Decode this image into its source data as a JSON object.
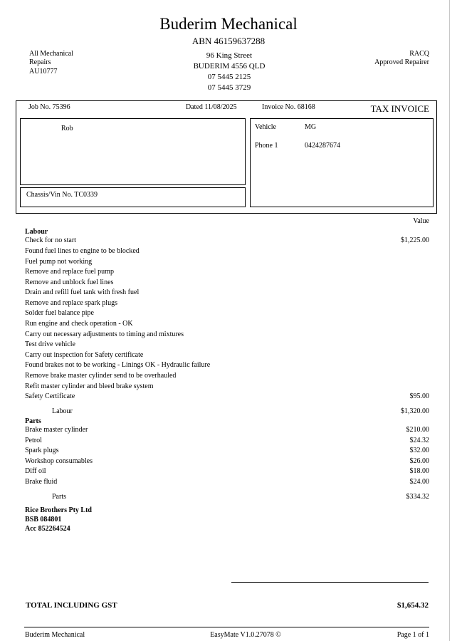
{
  "header": {
    "company": "Buderim Mechanical",
    "abn": "ABN 46159637288",
    "left_lines": [
      "All Mechanical",
      "Repairs",
      "AU10777"
    ],
    "address_lines": [
      "96 King Street",
      "BUDERIM 4556 QLD",
      "07 5445 2125",
      "07 5445 3729"
    ],
    "right_lines": [
      "RACQ",
      "Approved Repairer"
    ]
  },
  "invoice": {
    "job_no": "Job No. 75396",
    "dated": "Dated 11/08/2025",
    "invoice_no": "Invoice No. 68168",
    "doc_type": "TAX INVOICE",
    "customer_name": "Rob",
    "chassis": "Chassis/Vin No. TC0339",
    "vehicle_label": "Vehicle",
    "vehicle_value": "MG",
    "phone_label": "Phone 1",
    "phone_value": "0424287674"
  },
  "value_header": "Value",
  "labour": {
    "heading": "Labour",
    "items": [
      {
        "desc": "Check for no start",
        "value": "$1,225.00"
      },
      {
        "desc": "Found fuel lines to engine to be blocked",
        "value": ""
      },
      {
        "desc": "Fuel pump not working",
        "value": ""
      },
      {
        "desc": "Remove and replace fuel pump",
        "value": ""
      },
      {
        "desc": "Remove and unblock fuel lines",
        "value": ""
      },
      {
        "desc": "Drain and refill fuel tank with fresh fuel",
        "value": ""
      },
      {
        "desc": "Remove and replace spark plugs",
        "value": ""
      },
      {
        "desc": "Solder fuel balance pipe",
        "value": ""
      },
      {
        "desc": "Run engine and check operation - OK",
        "value": ""
      },
      {
        "desc": "Carry out necessary adjustments to timing and mixtures",
        "value": ""
      },
      {
        "desc": "Test drive vehicle",
        "value": ""
      },
      {
        "desc": "Carry out inspection for Safety certificate",
        "value": ""
      },
      {
        "desc": "Found brakes not to be working - Linings OK - Hydraulic failure",
        "value": ""
      },
      {
        "desc": "Remove brake master cylinder send to be overhauled",
        "value": ""
      },
      {
        "desc": "Refit master cylinder and bleed brake system",
        "value": ""
      },
      {
        "desc": "Safety Certificate",
        "value": "$95.00"
      }
    ],
    "subtotal_label": "Labour",
    "subtotal_value": "$1,320.00"
  },
  "parts": {
    "heading": "Parts",
    "items": [
      {
        "desc": "Brake master cylinder",
        "value": "$210.00"
      },
      {
        "desc": "Petrol",
        "value": "$24.32"
      },
      {
        "desc": "Spark plugs",
        "value": "$32.00"
      },
      {
        "desc": "Workshop consumables",
        "value": "$26.00"
      },
      {
        "desc": "Diff oil",
        "value": "$18.00"
      },
      {
        "desc": "Brake fluid",
        "value": "$24.00"
      }
    ],
    "subtotal_label": "Parts",
    "subtotal_value": "$334.32"
  },
  "bank": [
    "Rice Brothers Pty Ltd",
    "BSB  084801",
    "Acc  852264524"
  ],
  "total": {
    "label": "TOTAL INCLUDING GST",
    "value": "$1,654.32"
  },
  "footer": {
    "left": "Buderim Mechanical",
    "center": "EasyMate V1.0.27078 ©",
    "right": "Page 1 of 1"
  }
}
